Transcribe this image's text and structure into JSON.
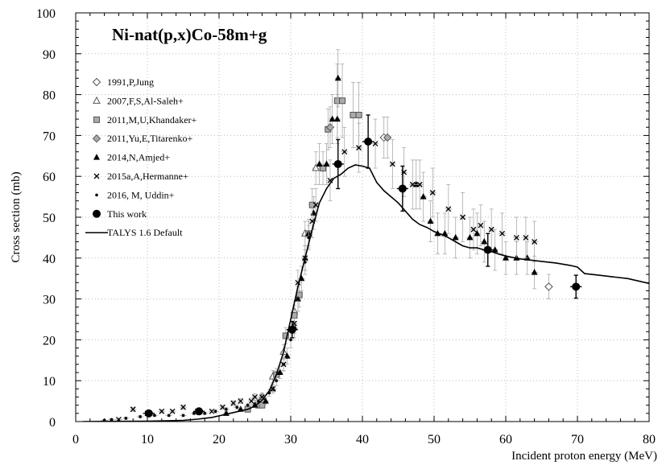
{
  "chart_data": {
    "type": "scatter",
    "title": "Ni-nat(p,x)Co-58m+g",
    "xlabel": "Incident proton energy (MeV)",
    "ylabel": "Cross section (mb)",
    "xlim": [
      0,
      80
    ],
    "ylim": [
      0,
      100
    ],
    "xticks": [
      0,
      10,
      20,
      30,
      40,
      50,
      60,
      70,
      80
    ],
    "yticks": [
      0,
      10,
      20,
      30,
      40,
      50,
      60,
      70,
      80,
      90,
      100
    ],
    "grid": true,
    "legend_position": "top-left",
    "series": [
      {
        "name": "1991,P,Jung",
        "marker": "diamond-open",
        "color": "#888888",
        "points": [
          [
            66,
            33,
            3,
            0.6
          ],
          [
            43,
            69.5,
            5,
            0.6
          ]
        ]
      },
      {
        "name": "2007,F,S,Al-Saleh+",
        "marker": "triangle-open",
        "color": "#888888",
        "points": [
          [
            26,
            6,
            1,
            0.5
          ],
          [
            27.5,
            11,
            1.5,
            0.5
          ],
          [
            29,
            17,
            1.8,
            0.5
          ],
          [
            30.5,
            27,
            2.5,
            0.5
          ],
          [
            32,
            46,
            3,
            0.5
          ],
          [
            33.5,
            62,
            4,
            0.5
          ]
        ]
      },
      {
        "name": "2011,M,U,Khandaker+",
        "marker": "square-gray",
        "color": "#999999",
        "points": [
          [
            24,
            3,
            0.5,
            0.5
          ],
          [
            25.5,
            4,
            0.6,
            0.5
          ],
          [
            26,
            4,
            0.6,
            0.5
          ],
          [
            28,
            11.5,
            1.5,
            0.5
          ],
          [
            29.3,
            21,
            2,
            0.5
          ],
          [
            30.5,
            26,
            2.5,
            0.5
          ],
          [
            31.2,
            31,
            3,
            0.5
          ],
          [
            32.5,
            46,
            3,
            0.5
          ],
          [
            33,
            53,
            4,
            0.5
          ],
          [
            34.5,
            62,
            4,
            0.5
          ],
          [
            35.2,
            71.5,
            5,
            0.5
          ],
          [
            36.5,
            78.5,
            9,
            0.5
          ],
          [
            37.2,
            78.5,
            9,
            0.5
          ],
          [
            38.7,
            75,
            8,
            0.5
          ],
          [
            39.5,
            75,
            8,
            0.5
          ]
        ]
      },
      {
        "name": "2011,Yu,E,Titarenko+",
        "marker": "diamond-gray",
        "color": "#999999",
        "points": [
          [
            35.5,
            72,
            5,
            0.5
          ],
          [
            43.5,
            69.5,
            5,
            0.5
          ]
        ]
      },
      {
        "name": "2014,N,Amjed+",
        "marker": "triangle-filled",
        "color": "#000000",
        "points": [
          [
            21,
            2,
            0.4,
            0.5
          ],
          [
            23,
            3,
            0.5,
            0.5
          ],
          [
            25,
            4,
            0.6,
            0.5
          ],
          [
            26.5,
            5,
            0.8,
            0.5
          ],
          [
            27.5,
            8,
            1,
            0.5
          ],
          [
            28.5,
            12,
            1.5,
            0.5
          ],
          [
            29.5,
            16,
            2,
            0.5
          ],
          [
            30.5,
            23,
            2.5,
            0.5
          ],
          [
            31,
            30,
            3,
            0.5
          ],
          [
            31.5,
            35,
            3,
            0.5
          ],
          [
            32,
            40,
            3,
            0.5
          ],
          [
            32.5,
            46,
            3.5,
            0.5
          ],
          [
            33.2,
            51,
            4,
            0.5
          ],
          [
            34,
            63,
            5,
            0.5
          ],
          [
            35,
            63,
            5,
            0.5
          ],
          [
            35.8,
            74,
            6,
            0.5
          ],
          [
            36.5,
            74,
            6,
            0.5
          ],
          [
            36.6,
            84,
            7,
            0.5
          ],
          [
            47.5,
            58,
            6,
            0.5
          ],
          [
            48.5,
            55,
            6,
            0.5
          ],
          [
            49.5,
            49,
            5,
            0.5
          ],
          [
            50.5,
            46,
            5,
            0.5
          ],
          [
            51.5,
            46,
            5,
            0.5
          ],
          [
            53,
            45,
            5,
            0.5
          ],
          [
            55,
            45,
            5,
            0.5
          ],
          [
            56,
            46,
            5,
            0.5
          ],
          [
            57,
            44,
            5,
            0.5
          ],
          [
            58.5,
            42,
            5,
            0.5
          ],
          [
            60,
            40,
            4,
            0.5
          ],
          [
            61.5,
            40,
            4,
            0.5
          ],
          [
            63,
            40,
            4,
            0.5
          ],
          [
            64,
            36.5,
            4,
            0.5
          ]
        ]
      },
      {
        "name": "2015a,A,Hermanne+",
        "marker": "x",
        "color": "#000000",
        "points": [
          [
            6,
            0.5,
            0.3,
            0.5
          ],
          [
            8,
            3,
            0.5,
            0.5
          ],
          [
            10,
            2,
            0.4,
            0.5
          ],
          [
            12,
            2.5,
            0.4,
            0.5
          ],
          [
            13.5,
            2.5,
            0.4,
            0.5
          ],
          [
            15,
            3.5,
            0.5,
            0.5
          ],
          [
            17,
            2.5,
            0.4,
            0.5
          ],
          [
            19,
            2.5,
            0.4,
            0.5
          ],
          [
            20.5,
            3.5,
            0.5,
            0.5
          ],
          [
            22,
            4.5,
            0.6,
            0.5
          ],
          [
            23,
            5,
            0.6,
            0.5
          ],
          [
            24.5,
            5,
            0.7,
            0.5
          ],
          [
            25,
            6,
            0.8,
            0.5
          ],
          [
            26,
            6,
            0.8,
            0.5
          ],
          [
            27.5,
            8,
            1,
            0.5
          ],
          [
            29,
            14,
            1.5,
            0.5
          ],
          [
            30.5,
            24,
            2.5,
            0.5
          ],
          [
            31,
            34,
            3,
            0.5
          ],
          [
            32,
            40,
            3,
            0.5
          ],
          [
            33,
            49,
            4,
            0.5
          ],
          [
            33.5,
            53,
            4,
            0.5
          ],
          [
            35.5,
            59,
            5,
            0.5
          ],
          [
            37.5,
            66,
            6,
            0.5
          ],
          [
            39.5,
            67,
            6,
            0.5
          ],
          [
            41.8,
            68,
            6,
            0.5
          ],
          [
            44.2,
            63,
            6,
            0.5
          ],
          [
            45.8,
            61,
            6,
            0.5
          ],
          [
            47,
            58,
            6,
            0.5
          ],
          [
            48,
            58,
            6,
            0.5
          ],
          [
            49.8,
            56,
            6,
            0.5
          ],
          [
            52,
            52,
            6,
            0.5
          ],
          [
            54,
            50,
            6,
            0.5
          ],
          [
            55.5,
            47,
            5,
            0.5
          ],
          [
            56.5,
            48,
            5,
            0.5
          ],
          [
            58,
            47,
            5,
            0.5
          ],
          [
            59.5,
            46,
            5,
            0.5
          ],
          [
            61.5,
            45,
            5,
            0.5
          ],
          [
            62.8,
            45,
            5,
            0.5
          ],
          [
            64,
            44,
            5,
            0.5
          ]
        ]
      },
      {
        "name": "2016, M, Uddin+",
        "marker": "dot",
        "color": "#000000",
        "points": [
          [
            4,
            0.3,
            0.2,
            0.5
          ],
          [
            5,
            0.5,
            0.2,
            0.5
          ],
          [
            7,
            0.8,
            0.3,
            0.5
          ],
          [
            9,
            1.2,
            0.3,
            0.5
          ],
          [
            11,
            1.5,
            0.3,
            0.5
          ],
          [
            13,
            1.5,
            0.3,
            0.5
          ],
          [
            15,
            1.5,
            0.3,
            0.5
          ],
          [
            16.5,
            2,
            0.3,
            0.5
          ],
          [
            18,
            2,
            0.3,
            0.5
          ],
          [
            19.5,
            2.5,
            0.4,
            0.5
          ],
          [
            21,
            3,
            0.4,
            0.5
          ],
          [
            22.5,
            3.5,
            0.5,
            0.5
          ],
          [
            24,
            4,
            0.5,
            0.5
          ],
          [
            25.5,
            5,
            0.6,
            0.5
          ],
          [
            27,
            7,
            0.8,
            0.5
          ],
          [
            28,
            10,
            1.2,
            0.5
          ],
          [
            29,
            14,
            1.6,
            0.5
          ],
          [
            30,
            20,
            2,
            0.5
          ],
          [
            31,
            30,
            3,
            0.5
          ],
          [
            32,
            39,
            3,
            0.5
          ],
          [
            32.5,
            45,
            3,
            0.5
          ]
        ]
      },
      {
        "name": "This work",
        "marker": "circle-filled",
        "color": "#000000",
        "points": [
          [
            10.2,
            2,
            0.4,
            0.8
          ],
          [
            17.2,
            2.5,
            0.5,
            0.8
          ],
          [
            30.2,
            22.5,
            2,
            0.8
          ],
          [
            36.6,
            63,
            6,
            0.8
          ],
          [
            40.8,
            68.5,
            6.5,
            0.8
          ],
          [
            45.6,
            57,
            5.5,
            0.8
          ],
          [
            57.5,
            42,
            4,
            0.8
          ],
          [
            69.8,
            33,
            2.8,
            0.8
          ]
        ]
      },
      {
        "name": "TALYS 1.6 Default",
        "marker": "line",
        "color": "#000000",
        "points": [
          [
            1,
            0
          ],
          [
            10,
            0.1
          ],
          [
            15,
            0.3
          ],
          [
            17,
            0.6
          ],
          [
            19,
            1
          ],
          [
            20,
            1.4
          ],
          [
            22,
            2.2
          ],
          [
            24,
            3
          ],
          [
            25,
            3.8
          ],
          [
            26,
            5.2
          ],
          [
            27,
            7.5
          ],
          [
            28,
            11.5
          ],
          [
            29,
            17
          ],
          [
            30,
            25
          ],
          [
            31,
            33
          ],
          [
            32,
            40
          ],
          [
            33,
            47
          ],
          [
            34,
            53.5
          ],
          [
            35,
            57
          ],
          [
            36,
            59.5
          ],
          [
            37,
            60.5
          ],
          [
            38,
            62
          ],
          [
            39,
            62.8
          ],
          [
            40,
            62.5
          ],
          [
            41,
            62
          ],
          [
            42,
            58.5
          ],
          [
            43,
            56.5
          ],
          [
            44,
            55
          ],
          [
            45,
            53.5
          ],
          [
            46,
            51.5
          ],
          [
            47,
            49.5
          ],
          [
            48,
            48.2
          ],
          [
            49,
            47.5
          ],
          [
            50,
            46.5
          ],
          [
            51,
            45.8
          ],
          [
            52,
            45
          ],
          [
            53,
            44
          ],
          [
            54,
            43
          ],
          [
            55,
            42.5
          ],
          [
            56,
            42.5
          ],
          [
            57,
            42
          ],
          [
            58,
            41.6
          ],
          [
            59,
            41
          ],
          [
            60,
            40.5
          ],
          [
            62,
            39.8
          ],
          [
            65,
            39.2
          ],
          [
            67,
            38.8
          ],
          [
            69,
            38.2
          ],
          [
            70,
            37.8
          ],
          [
            71,
            36.2
          ],
          [
            73,
            35.8
          ],
          [
            75,
            35.4
          ],
          [
            77,
            35
          ],
          [
            80,
            33.8
          ]
        ]
      }
    ]
  }
}
